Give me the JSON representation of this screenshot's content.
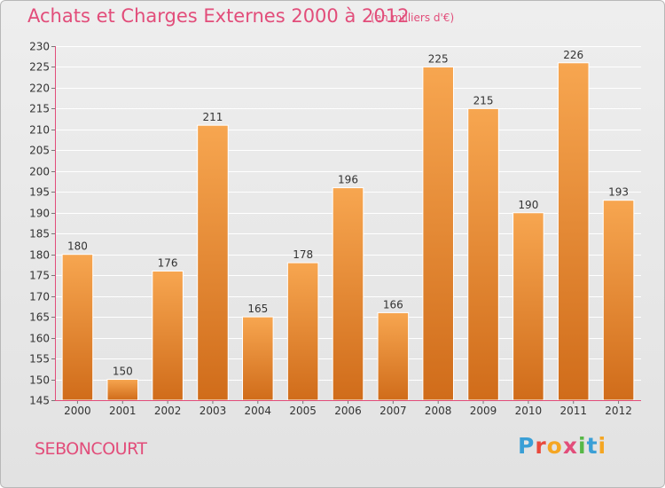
{
  "header": {
    "title": "Achats et Charges Externes 2000 à 2012",
    "unit": "(en milliers d'€)"
  },
  "footer": {
    "commune": "SEBONCOURT",
    "logo": {
      "letters": [
        "P",
        "r",
        "o",
        "x",
        "i",
        "t",
        "i"
      ],
      "colors": [
        "#3a9fd6",
        "#e9493c",
        "#f5a623",
        "#e24d7a",
        "#57b847",
        "#3a9fd6",
        "#f5a623"
      ]
    }
  },
  "chart_data": {
    "type": "bar",
    "title": "Achats et Charges Externes 2000 à 2012",
    "categories": [
      "2000",
      "2001",
      "2002",
      "2003",
      "2004",
      "2005",
      "2006",
      "2007",
      "2008",
      "2009",
      "2010",
      "2011",
      "2012"
    ],
    "values": [
      180,
      150,
      176,
      211,
      165,
      178,
      196,
      166,
      225,
      215,
      190,
      226,
      193
    ],
    "ylim": [
      145,
      230
    ],
    "yticks": [
      145,
      150,
      155,
      160,
      165,
      170,
      175,
      180,
      185,
      190,
      195,
      200,
      205,
      210,
      215,
      220,
      225,
      230
    ],
    "grid": true,
    "colors": {
      "bar_light": "#f6a24c",
      "bar_dark": "#d5701c",
      "grid": "#ffffff",
      "axis": "#e24d7a"
    }
  }
}
